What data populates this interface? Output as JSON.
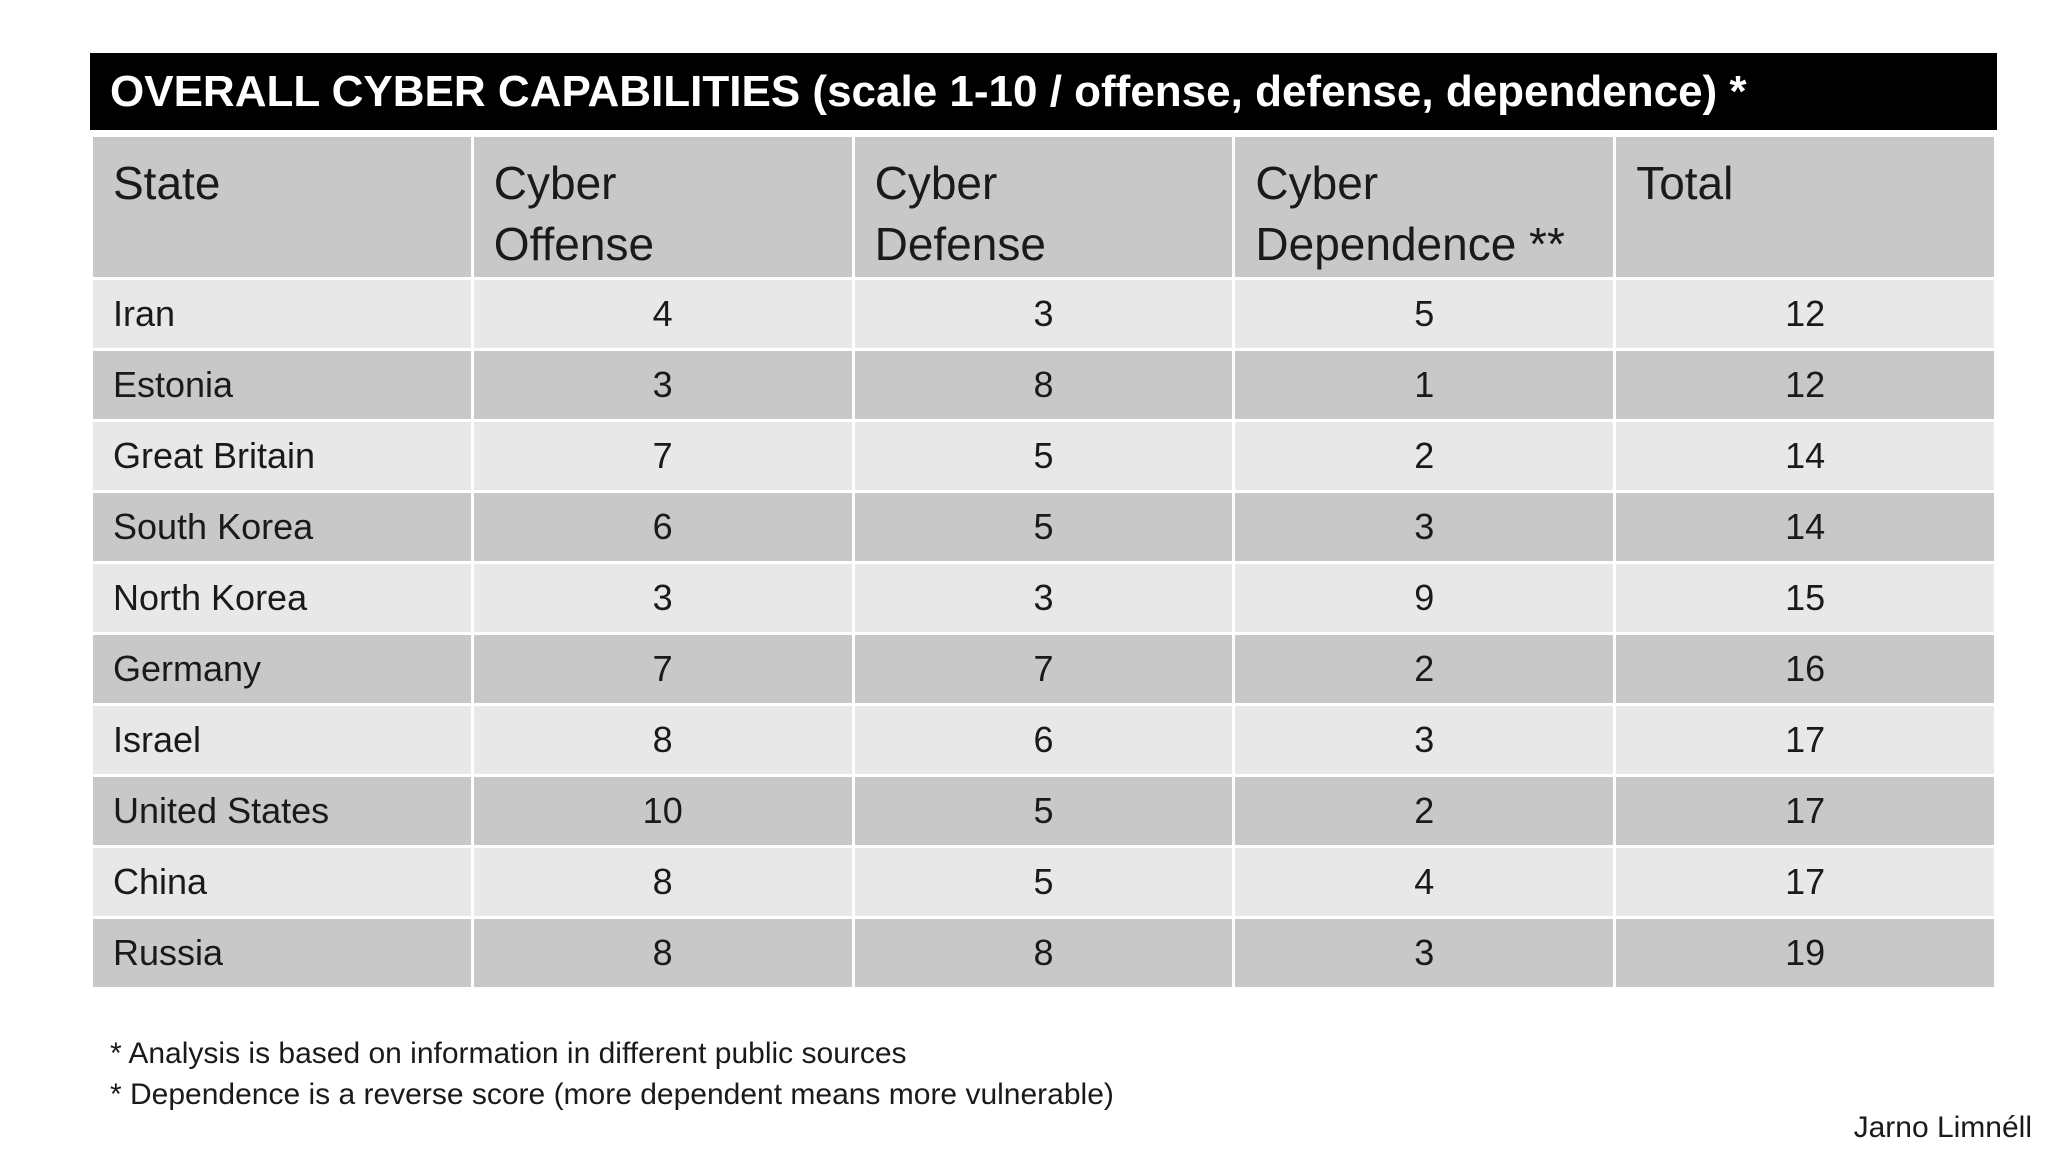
{
  "title": "OVERALL CYBER CAPABILITIES (scale 1-10 / offense, defense, dependence) *",
  "table": {
    "headers": [
      "State",
      "Cyber Offense",
      "Cyber Defense",
      "Cyber Dependence **",
      "Total"
    ],
    "rows": [
      [
        "Iran",
        "4",
        "3",
        "5",
        "12"
      ],
      [
        "Estonia",
        "3",
        "8",
        "1",
        "12"
      ],
      [
        "Great Britain",
        "7",
        "5",
        "2",
        "14"
      ],
      [
        "South Korea",
        "6",
        "5",
        "3",
        "14"
      ],
      [
        "North Korea",
        "3",
        "3",
        "9",
        "15"
      ],
      [
        "Germany",
        "7",
        "7",
        "2",
        "16"
      ],
      [
        "Israel",
        "8",
        "6",
        "3",
        "17"
      ],
      [
        "United States",
        "10",
        "5",
        "2",
        "17"
      ],
      [
        "China",
        "8",
        "5",
        "4",
        "17"
      ],
      [
        "Russia",
        "8",
        "8",
        "3",
        "19"
      ]
    ]
  },
  "notes": [
    "* Analysis is based on information in different public sources",
    "* Dependence is a reverse score (more dependent means more vulnerable)"
  ],
  "author": "Jarno Limnéll",
  "colors": {
    "title_bg": "#000000",
    "title_text": "#ffffff",
    "header_bg": "#c8c8c8",
    "row_light": "#e8e8e8",
    "row_dark": "#c8c8c8"
  }
}
